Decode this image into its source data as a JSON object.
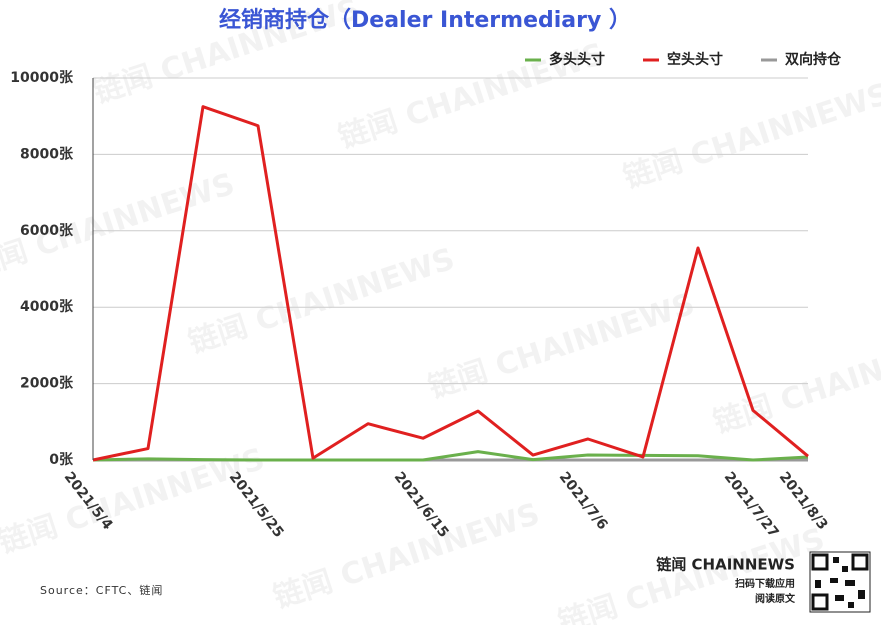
{
  "chart_data": {
    "type": "line",
    "title": "经销商持仓（Dealer Intermediary ）",
    "categories": [
      "2021/5/4",
      null,
      null,
      "2021/5/25",
      null,
      null,
      "2021/6/15",
      null,
      null,
      "2021/7/6",
      null,
      null,
      "2021/7/27",
      "2021/8/3"
    ],
    "series": [
      {
        "name": "多头头寸",
        "color": "#6ab04c",
        "values": [
          0,
          30,
          10,
          0,
          0,
          0,
          0,
          220,
          10,
          130,
          120,
          110,
          0,
          80
        ]
      },
      {
        "name": "空头头寸",
        "color": "#e02020",
        "values": [
          0,
          300,
          9250,
          8750,
          50,
          950,
          570,
          1280,
          130,
          550,
          80,
          5550,
          1300,
          100
        ]
      },
      {
        "name": "双向持仓",
        "color": "#999999",
        "values": [
          0,
          0,
          0,
          0,
          0,
          0,
          0,
          0,
          0,
          0,
          0,
          0,
          0,
          0
        ]
      }
    ],
    "ylim": [
      0,
      10000
    ],
    "yticks": [
      {
        "value": 0,
        "label": "0张"
      },
      {
        "value": 2000,
        "label": "2000张"
      },
      {
        "value": 4000,
        "label": "4000张"
      },
      {
        "value": 6000,
        "label": "6000张"
      },
      {
        "value": 8000,
        "label": "8000张"
      },
      {
        "value": 10000,
        "label": "10000张"
      }
    ],
    "grid": true,
    "legend": "top-right"
  },
  "source": "Source：CFTC、链闻",
  "watermark": "链闻 CHAINNEWS",
  "brand": {
    "logo": "链闻 CHAINNEWS",
    "line1": "扫码下载应用",
    "line2": "阅读原文"
  }
}
